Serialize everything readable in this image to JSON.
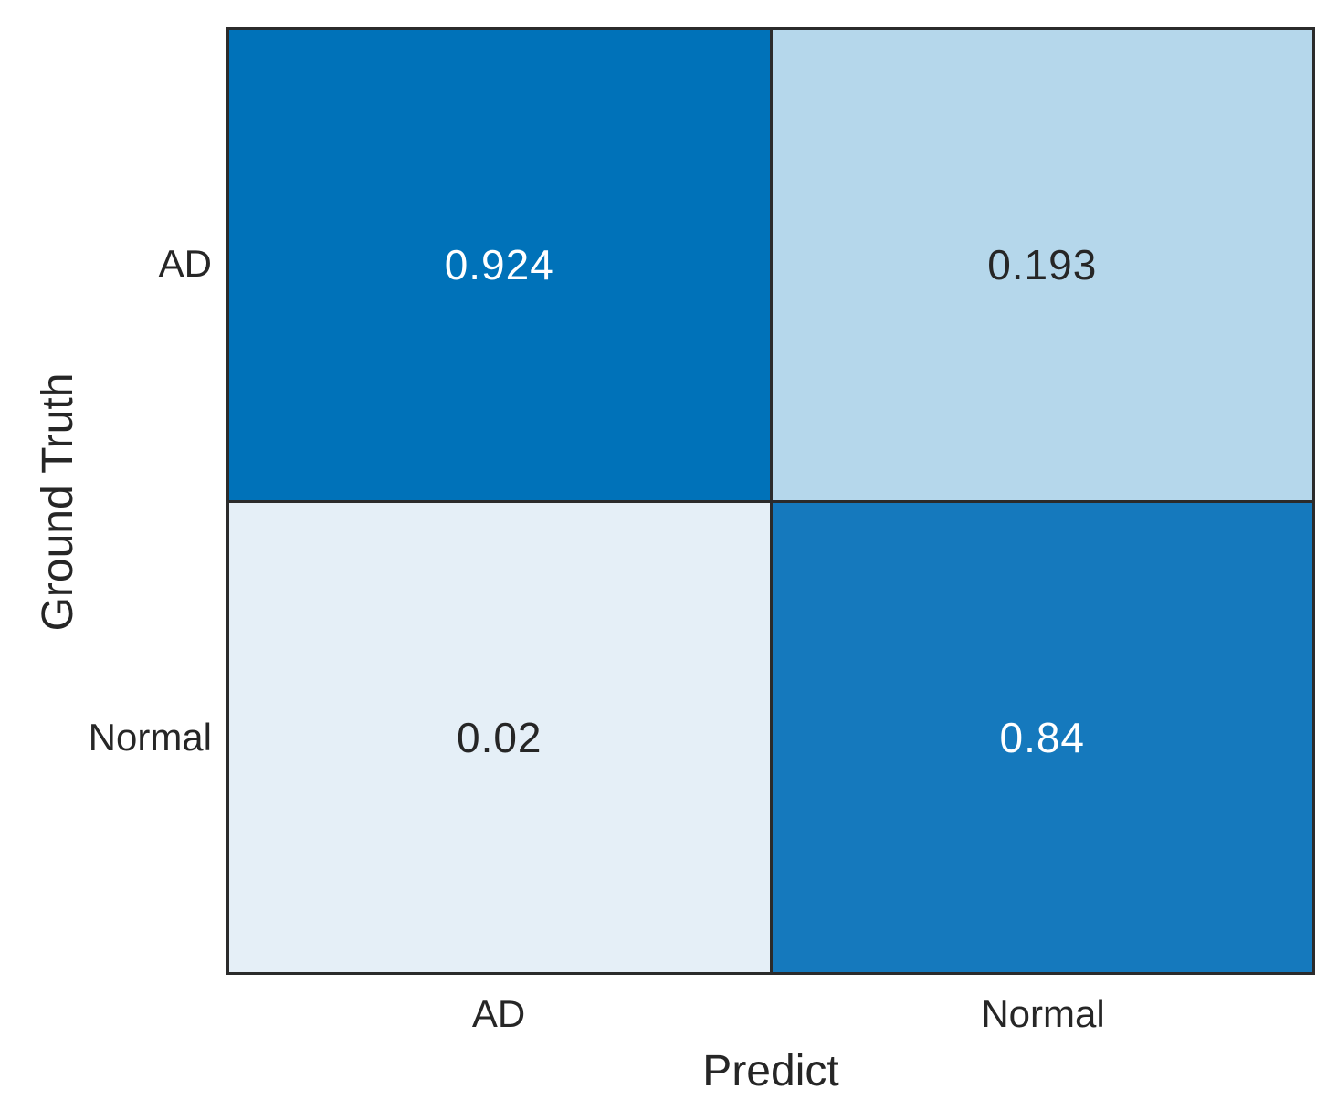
{
  "chart_data": {
    "type": "heatmap",
    "subtype": "confusion-matrix",
    "xlabel": "Predict",
    "ylabel": "Ground Truth",
    "x_categories": [
      "AD",
      "Normal"
    ],
    "y_categories": [
      "AD",
      "Normal"
    ],
    "values": [
      [
        0.924,
        0.193
      ],
      [
        0.02,
        0.84
      ]
    ],
    "value_range": [
      0.02,
      0.924
    ],
    "colormap": "blues",
    "grid": true,
    "grid_line_color": "#2b2b2b",
    "background": "#ffffff",
    "cells": [
      {
        "row": "AD",
        "col": "AD",
        "label": "0.924",
        "bg": "#0072b9",
        "fg": "#ffffff"
      },
      {
        "row": "AD",
        "col": "Normal",
        "label": "0.193",
        "bg": "#b5d7eb",
        "fg": "#262626"
      },
      {
        "row": "Normal",
        "col": "AD",
        "label": "0.02",
        "bg": "#e5eff7",
        "fg": "#262626"
      },
      {
        "row": "Normal",
        "col": "Normal",
        "label": "0.84",
        "bg": "#1579bd",
        "fg": "#ffffff"
      }
    ]
  }
}
